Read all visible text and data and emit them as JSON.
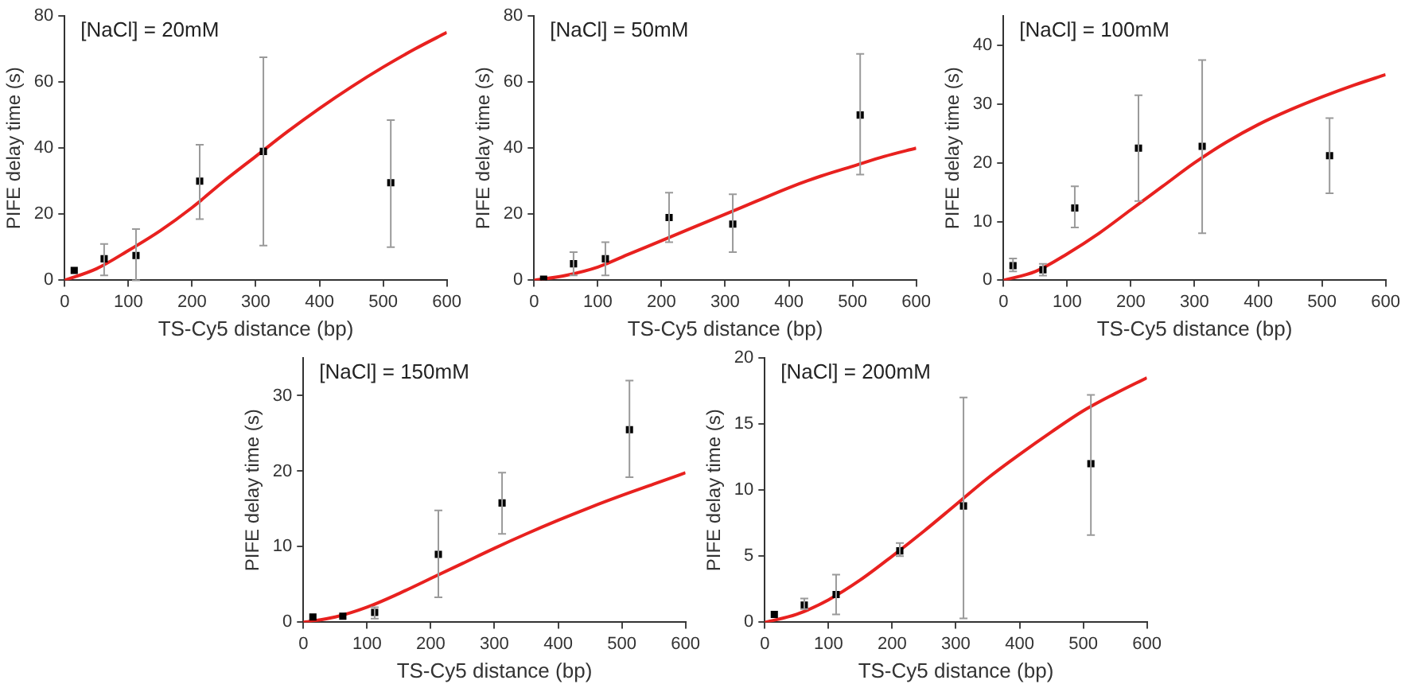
{
  "chart_data": [
    {
      "type": "scatter",
      "annotations": [
        "[NaCl] = 20mM"
      ],
      "xlabel": "TS-Cy5 distance (bp)",
      "ylabel": "PIFE delay time (s)",
      "x": [
        15,
        62,
        112,
        212,
        312,
        512
      ],
      "xlim": [
        0,
        600
      ],
      "xticks": [
        0,
        100,
        200,
        300,
        400,
        500,
        600
      ],
      "ylim": [
        0,
        80
      ],
      "yticks": [
        0,
        20,
        40,
        60,
        80
      ],
      "grid": false,
      "legend": false,
      "marker": "square",
      "series": [
        {
          "type": "scatter",
          "color": "#000000",
          "values": [
            3,
            6.5,
            7.5,
            30,
            39,
            29.5
          ],
          "errors": [
            null,
            [
              1.5,
              11
            ],
            [
              0,
              15.5
            ],
            [
              18.5,
              41
            ],
            [
              10.5,
              67.5
            ],
            [
              10,
              48.5
            ]
          ]
        },
        {
          "type": "line",
          "color": "#e8211f",
          "marker": "none",
          "x": [
            0,
            50,
            100,
            150,
            200,
            250,
            300,
            350,
            400,
            450,
            500,
            550,
            600
          ],
          "values": [
            0,
            3.5,
            9,
            15,
            22,
            30,
            37.5,
            45,
            52,
            58.5,
            64.5,
            70,
            75
          ]
        }
      ]
    },
    {
      "type": "scatter",
      "annotations": [
        "[NaCl] = 50mM"
      ],
      "xlabel": "TS-Cy5 distance (bp)",
      "ylabel": "PIFE delay time (s)",
      "x": [
        15,
        62,
        112,
        212,
        312,
        512
      ],
      "xlim": [
        0,
        600
      ],
      "xticks": [
        0,
        100,
        200,
        300,
        400,
        500,
        600
      ],
      "ylim": [
        0,
        80
      ],
      "yticks": [
        0,
        20,
        40,
        60,
        80
      ],
      "grid": false,
      "legend": false,
      "marker": "square",
      "series": [
        {
          "type": "scatter",
          "color": "#000000",
          "values": [
            0.3,
            5,
            6.5,
            19,
            17,
            50
          ],
          "errors": [
            null,
            [
              1.5,
              8.5
            ],
            [
              1.5,
              11.5
            ],
            [
              11.5,
              26.5
            ],
            [
              8.5,
              26
            ],
            [
              32,
              68.5
            ]
          ]
        },
        {
          "type": "line",
          "color": "#e8211f",
          "marker": "none",
          "x": [
            0,
            50,
            100,
            150,
            200,
            250,
            300,
            350,
            400,
            450,
            500,
            550,
            600
          ],
          "values": [
            0,
            1.5,
            4,
            8,
            12,
            16,
            20,
            24,
            28,
            31.5,
            34.5,
            37.5,
            40
          ]
        }
      ]
    },
    {
      "type": "scatter",
      "annotations": [
        "[NaCl] = 100mM"
      ],
      "xlabel": "TS-Cy5 distance (bp)",
      "ylabel": "PIFE delay time (s)",
      "x": [
        15,
        62,
        112,
        212,
        312,
        512
      ],
      "xlim": [
        0,
        600
      ],
      "xticks": [
        0,
        100,
        200,
        300,
        400,
        500,
        600
      ],
      "ylim": [
        0,
        45
      ],
      "yticks": [
        0,
        10,
        20,
        30,
        40
      ],
      "grid": false,
      "legend": false,
      "marker": "square",
      "series": [
        {
          "type": "scatter",
          "color": "#000000",
          "values": [
            2.5,
            1.8,
            12.3,
            22.5,
            22.8,
            21.2
          ],
          "errors": [
            [
              1.5,
              3.7
            ],
            [
              0.8,
              2.8
            ],
            [
              9,
              16
            ],
            [
              13.5,
              31.5
            ],
            [
              8,
              37.5
            ],
            [
              14.8,
              27.6
            ]
          ]
        },
        {
          "type": "line",
          "color": "#e8211f",
          "marker": "none",
          "x": [
            0,
            50,
            100,
            150,
            200,
            250,
            300,
            350,
            400,
            450,
            500,
            550,
            600
          ],
          "values": [
            0,
            1.5,
            4.5,
            8,
            12,
            16,
            20,
            23.5,
            26.5,
            29,
            31.2,
            33.2,
            35
          ]
        }
      ]
    },
    {
      "type": "scatter",
      "annotations": [
        "[NaCl] = 150mM"
      ],
      "xlabel": "TS-Cy5 distance (bp)",
      "ylabel": "PIFE delay time (s)",
      "x": [
        15,
        62,
        112,
        212,
        312,
        512
      ],
      "xlim": [
        0,
        600
      ],
      "xticks": [
        0,
        100,
        200,
        300,
        400,
        500,
        600
      ],
      "ylim": [
        0,
        35
      ],
      "yticks": [
        0,
        10,
        20,
        30
      ],
      "grid": false,
      "legend": false,
      "marker": "square",
      "series": [
        {
          "type": "scatter",
          "color": "#000000",
          "values": [
            0.7,
            0.8,
            1.3,
            9,
            15.8,
            25.5
          ],
          "errors": [
            null,
            null,
            [
              0.5,
              2
            ],
            [
              3.3,
              14.8
            ],
            [
              11.7,
              19.8
            ],
            [
              19.2,
              32
            ]
          ]
        },
        {
          "type": "line",
          "color": "#e8211f",
          "marker": "none",
          "x": [
            0,
            50,
            100,
            150,
            200,
            250,
            300,
            350,
            400,
            450,
            500,
            550,
            600
          ],
          "values": [
            0,
            0.7,
            2,
            3.8,
            5.8,
            7.8,
            9.8,
            11.7,
            13.5,
            15.2,
            16.8,
            18.3,
            19.8
          ]
        }
      ]
    },
    {
      "type": "scatter",
      "annotations": [
        "[NaCl] = 200mM"
      ],
      "xlabel": "TS-Cy5 distance (bp)",
      "ylabel": "PIFE delay time (s)",
      "x": [
        15,
        62,
        112,
        212,
        312,
        512
      ],
      "xlim": [
        0,
        600
      ],
      "xticks": [
        0,
        100,
        200,
        300,
        400,
        500,
        600
      ],
      "ylim": [
        0,
        20
      ],
      "yticks": [
        0,
        5,
        10,
        15,
        20
      ],
      "grid": false,
      "legend": false,
      "marker": "square",
      "series": [
        {
          "type": "scatter",
          "color": "#000000",
          "values": [
            0.6,
            1.3,
            2.1,
            5.4,
            8.8,
            12
          ],
          "errors": [
            null,
            [
              1,
              1.8
            ],
            [
              0.6,
              3.6
            ],
            [
              5,
              6
            ],
            [
              0.3,
              17
            ],
            [
              6.6,
              17.2
            ]
          ]
        },
        {
          "type": "line",
          "color": "#e8211f",
          "marker": "none",
          "x": [
            0,
            50,
            100,
            150,
            200,
            250,
            300,
            350,
            400,
            450,
            500,
            550,
            600
          ],
          "values": [
            0,
            0.6,
            1.7,
            3.2,
            5,
            6.9,
            8.9,
            10.9,
            12.7,
            14.4,
            16,
            17.3,
            18.5
          ]
        }
      ]
    }
  ]
}
